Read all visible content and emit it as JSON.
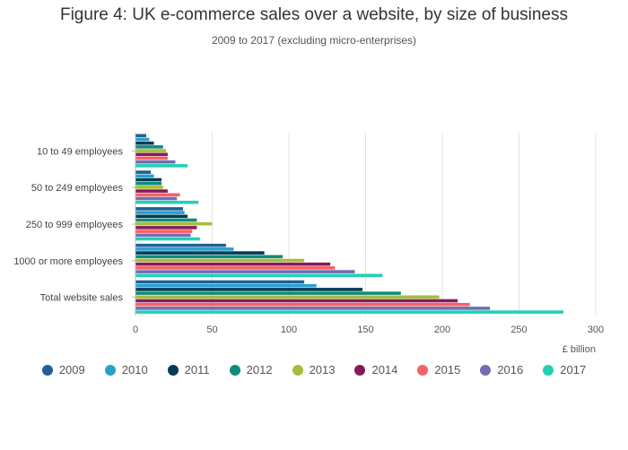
{
  "chart_data": {
    "type": "bar",
    "orientation": "horizontal",
    "title": "Figure 4: UK e-commerce sales over a website, by size of business",
    "subtitle": "2009 to 2017 (excluding micro-enterprises)",
    "xlabel": "£ billion",
    "ylabel": "",
    "xlim": [
      0,
      300
    ],
    "xticks": [
      "0",
      "50",
      "100",
      "150",
      "200",
      "250",
      "300"
    ],
    "grid": true,
    "legend_position": "bottom",
    "categories": [
      "10 to 49 employees",
      "50 to 249 employees",
      "250 to 999 employees",
      "1000 or more employees",
      "Total website sales"
    ],
    "series": [
      {
        "name": "2009",
        "color": "#206095",
        "values": [
          7,
          10,
          31,
          59,
          110
        ]
      },
      {
        "name": "2010",
        "color": "#27A0CC",
        "values": [
          9,
          12,
          32,
          64,
          118
        ]
      },
      {
        "name": "2011",
        "color": "#003C57",
        "values": [
          12,
          17,
          34,
          84,
          148
        ]
      },
      {
        "name": "2012",
        "color": "#118C7B",
        "values": [
          18,
          17,
          40,
          96,
          173
        ]
      },
      {
        "name": "2013",
        "color": "#A8BD3A",
        "values": [
          20,
          18,
          50,
          110,
          198
        ]
      },
      {
        "name": "2014",
        "color": "#871A5B",
        "values": [
          21,
          21,
          40,
          127,
          210
        ]
      },
      {
        "name": "2015",
        "color": "#F66068",
        "values": [
          21,
          29,
          37,
          130,
          218
        ]
      },
      {
        "name": "2016",
        "color": "#746CB1",
        "values": [
          26,
          27,
          36,
          143,
          231
        ]
      },
      {
        "name": "2017",
        "color": "#22D0B6",
        "values": [
          34,
          41,
          42,
          161,
          279
        ]
      }
    ]
  }
}
